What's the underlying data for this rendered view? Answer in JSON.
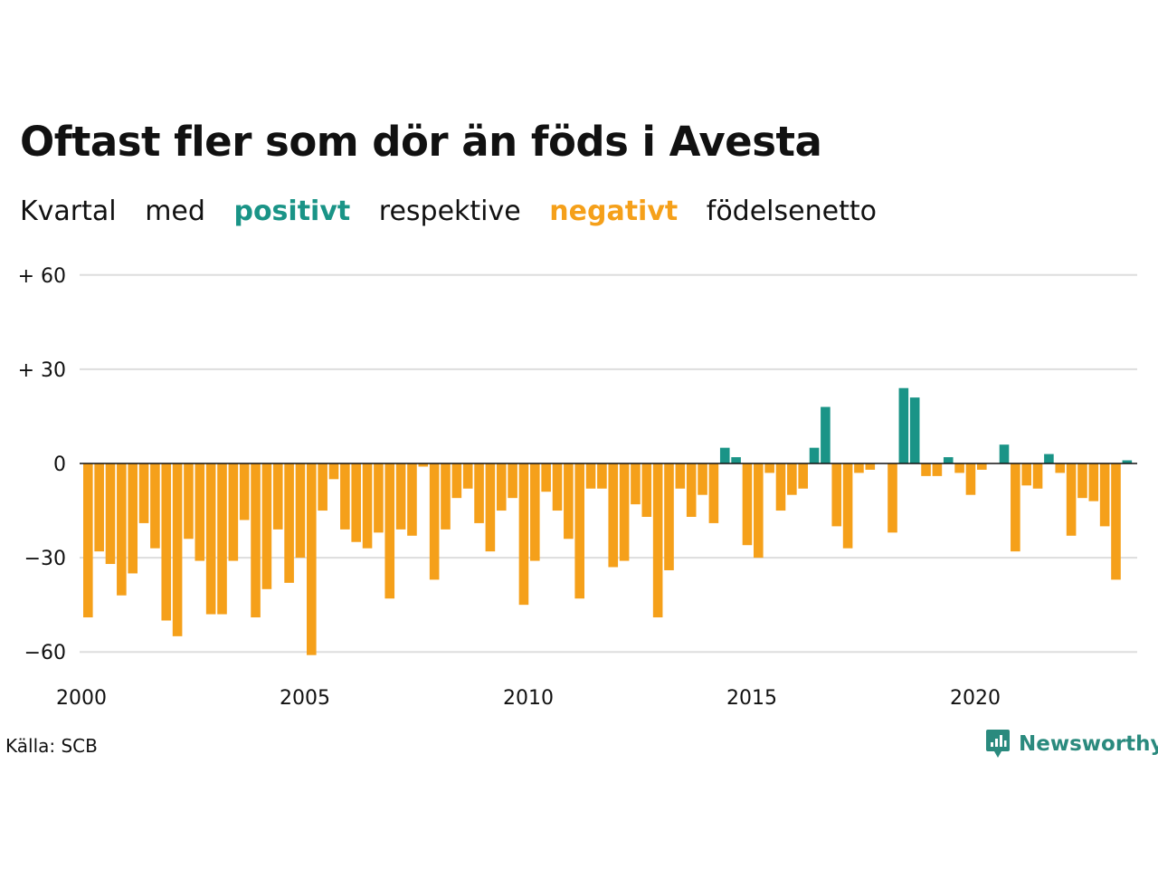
{
  "title": "Oftast fler som dör än föds i Avesta",
  "subtitle": {
    "w1": "Kvartal",
    "w2": "med",
    "positive": "positivt",
    "w3": "respektive",
    "negative": "negativt",
    "w4": "födelsenetto"
  },
  "source": "Källa: SCB",
  "brand": "Newsworthy",
  "colors": {
    "positive": "#1a9487",
    "negative": "#f5a01a",
    "brand": "#2a8a7e",
    "grid": "#dddddd",
    "baseline": "#111111"
  },
  "chart_data": {
    "type": "bar",
    "x_start": "2000 Q1",
    "x_ticks": [
      "2000",
      "2005",
      "2010",
      "2015",
      "2020"
    ],
    "y_ticks": [
      60,
      30,
      0,
      -30,
      -60
    ],
    "y_tick_labels": [
      "+ 60",
      "+ 30",
      "0",
      "−30",
      "−60"
    ],
    "ylim": [
      -65,
      60
    ],
    "grid": true,
    "values": [
      -49,
      -28,
      -32,
      -42,
      -35,
      -19,
      -27,
      -50,
      -55,
      -24,
      -31,
      -48,
      -48,
      -31,
      -18,
      -49,
      -40,
      -21,
      -38,
      -30,
      -61,
      -15,
      -5,
      -21,
      -25,
      -27,
      -22,
      -43,
      -21,
      -23,
      -1,
      -37,
      -21,
      -11,
      -8,
      -19,
      -28,
      -15,
      -11,
      -45,
      -31,
      -9,
      -15,
      -24,
      -43,
      -8,
      -8,
      -33,
      -31,
      -13,
      -17,
      -49,
      -34,
      -8,
      -17,
      -10,
      -19,
      5,
      2,
      -26,
      -30,
      -3,
      -15,
      -10,
      -8,
      5,
      18,
      -20,
      -27,
      -3,
      -2,
      0,
      -22,
      24,
      21,
      -4,
      -4,
      2,
      -3,
      -10,
      -2,
      0,
      6,
      -28,
      -7,
      -8,
      3,
      -3,
      -23,
      -11,
      -12,
      -20,
      -37,
      1
    ]
  }
}
